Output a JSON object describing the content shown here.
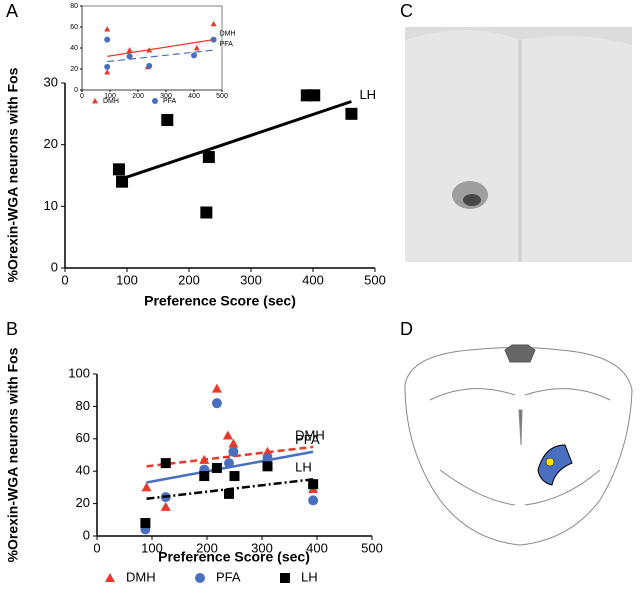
{
  "chart_data": [
    {
      "type": "scatter",
      "label": "A",
      "xlabel": "Preference Score (sec)",
      "ylabel": "%Orexin-WGA neurons with Fos",
      "xlim": [
        0,
        500
      ],
      "xticks": [
        0,
        100,
        200,
        300,
        400,
        500
      ],
      "ylim": [
        0,
        30
      ],
      "yticks": [
        0,
        10,
        20,
        30
      ],
      "legend": false,
      "series": [
        {
          "name": "LH",
          "color": "#000000",
          "marker": "square",
          "x": [
            87,
            92,
            165,
            228,
            232,
            390,
            402,
            462
          ],
          "values": [
            16,
            14,
            24,
            9,
            18,
            28,
            28,
            25
          ],
          "trend": {
            "x": [
              87,
              462
            ],
            "y": [
              14.3,
              27
            ],
            "dash": "solid"
          }
        }
      ]
    },
    {
      "type": "scatter",
      "xlim": [
        0,
        500
      ],
      "xticks": [
        0,
        100,
        200,
        300,
        400,
        500
      ],
      "ylim": [
        0,
        80
      ],
      "yticks": [
        0,
        20,
        40,
        60,
        80
      ],
      "legend": true,
      "series": [
        {
          "name": "DMH",
          "color": "#e8392b",
          "marker": "triangle",
          "x": [
            90,
            90,
            170,
            235,
            240,
            410,
            470
          ],
          "values": [
            58,
            17,
            38,
            22,
            38,
            40,
            63
          ],
          "trend": {
            "x": [
              90,
              470
            ],
            "y": [
              32,
              48
            ],
            "dash": "solid"
          }
        },
        {
          "name": "PFA",
          "color": "#4a6fc0",
          "marker": "circle",
          "x": [
            90,
            90,
            170,
            240,
            400,
            470
          ],
          "values": [
            48,
            22,
            32,
            23,
            33,
            48
          ],
          "trend": {
            "x": [
              90,
              470
            ],
            "y": [
              27,
              38
            ],
            "dash": "dashed"
          }
        }
      ]
    },
    {
      "type": "scatter",
      "label": "B",
      "xlabel": "Preference Score (sec)",
      "ylabel": "%Orexin-WGA neurons with Fos",
      "xlim": [
        0,
        500
      ],
      "xticks": [
        0,
        100,
        200,
        300,
        400,
        500
      ],
      "ylim": [
        0,
        100
      ],
      "yticks": [
        0,
        20,
        40,
        60,
        80,
        100
      ],
      "legend": true,
      "series": [
        {
          "name": "DMH",
          "color": "#e8392b",
          "marker": "triangle",
          "x": [
            90,
            125,
            195,
            218,
            238,
            248,
            248,
            310,
            393
          ],
          "values": [
            30,
            18,
            47,
            91,
            62,
            57,
            52,
            52,
            29
          ],
          "trend": {
            "x": [
              90,
              393
            ],
            "y": [
              43,
              55
            ],
            "dash": "dashed"
          }
        },
        {
          "name": "PFA",
          "color": "#4a6fc0",
          "marker": "circle",
          "x": [
            88,
            125,
            195,
            218,
            240,
            248,
            310,
            393
          ],
          "values": [
            4,
            24,
            41,
            82,
            45,
            52,
            48,
            22
          ],
          "trend": {
            "x": [
              90,
              393
            ],
            "y": [
              33,
              52
            ],
            "dash": "solid"
          }
        },
        {
          "name": "LH",
          "color": "#000000",
          "marker": "square",
          "x": [
            88,
            125,
            195,
            218,
            240,
            250,
            310,
            393
          ],
          "values": [
            8,
            45,
            37,
            42,
            26,
            37,
            43,
            32
          ],
          "trend": {
            "x": [
              90,
              393
            ],
            "y": [
              23,
              35
            ],
            "dash": "dashdot"
          }
        }
      ]
    }
  ],
  "image_panels": [
    {
      "label": "C"
    },
    {
      "label": "D"
    }
  ]
}
